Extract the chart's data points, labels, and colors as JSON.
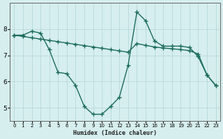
{
  "line1_x": [
    0,
    1,
    2,
    3,
    4,
    5,
    6,
    7,
    8,
    9,
    10,
    11,
    12,
    13,
    14,
    15,
    16,
    17,
    18,
    19,
    20,
    21,
    22,
    23
  ],
  "line1_y": [
    7.77,
    7.77,
    7.92,
    7.85,
    7.22,
    6.35,
    6.3,
    5.85,
    5.05,
    4.75,
    4.75,
    5.05,
    5.4,
    6.62,
    8.65,
    8.32,
    7.55,
    7.35,
    7.35,
    7.35,
    7.3,
    6.95,
    6.25,
    5.85
  ],
  "line2_x": [
    0,
    1,
    2,
    3,
    4,
    5,
    6,
    7,
    8,
    9,
    10,
    11,
    12,
    13,
    14,
    15,
    16,
    17,
    18,
    19,
    20,
    21,
    22,
    23
  ],
  "line2_y": [
    7.77,
    7.72,
    7.67,
    7.62,
    7.57,
    7.52,
    7.47,
    7.42,
    7.37,
    7.32,
    7.27,
    7.22,
    7.17,
    7.12,
    7.45,
    7.38,
    7.32,
    7.28,
    7.25,
    7.22,
    7.18,
    7.05,
    6.25,
    5.85
  ],
  "line_color": "#1a6b5a",
  "bg_color": "#d6eeee",
  "grid_color": "#b8d8d8",
  "xlabel": "Humidex (Indice chaleur)",
  "xlim": [
    -0.5,
    23.5
  ],
  "ylim": [
    4.5,
    9.0
  ],
  "yticks": [
    5,
    6,
    7,
    8
  ],
  "xticks": [
    0,
    1,
    2,
    3,
    4,
    5,
    6,
    7,
    8,
    9,
    10,
    11,
    12,
    13,
    14,
    15,
    16,
    17,
    18,
    19,
    20,
    21,
    22,
    23
  ],
  "marker": "+",
  "marker_size": 4.0,
  "line_width": 1.0,
  "xlabel_fontsize": 6.0,
  "tick_fontsize_x": 5.0,
  "tick_fontsize_y": 6.5
}
